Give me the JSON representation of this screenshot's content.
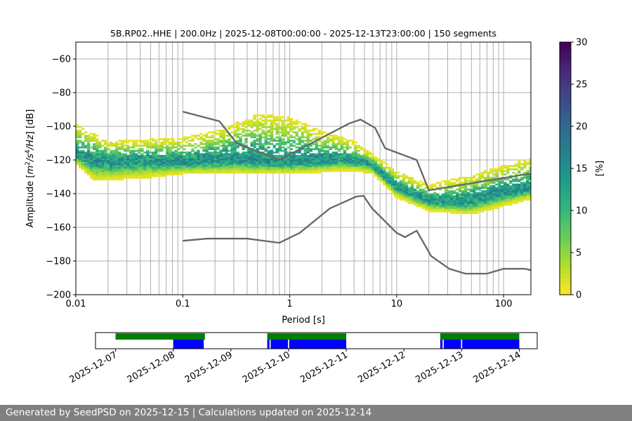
{
  "chart_data": [
    {
      "type": "heatmap",
      "title": "5B.RP02..HHE | 200.0Hz | 2025-12-08T00:00:00 - 2025-12-13T23:00:00 | 150 segments",
      "xlabel": "Period [s]",
      "ylabel": "Amplitude [m²/s⁴/Hz] [dB]",
      "xscale": "log",
      "xlim": [
        0.01,
        180
      ],
      "ylim": [
        -200,
        -50
      ],
      "xticks": [
        {
          "v": 0.01,
          "label": "0.01"
        },
        {
          "v": 0.1,
          "label": "0.1"
        },
        {
          "v": 1,
          "label": "1"
        },
        {
          "v": 10,
          "label": "10"
        },
        {
          "v": 100,
          "label": "100"
        }
      ],
      "yticks": [
        -60,
        -80,
        -100,
        -120,
        -140,
        -160,
        -180,
        -200
      ],
      "grid": true,
      "colorbar": {
        "label": "[%]",
        "range": [
          0,
          30
        ],
        "ticks": [
          0,
          5,
          10,
          15,
          20,
          25,
          30
        ],
        "colormap": "viridis_r"
      },
      "psd_mode": [
        [
          0.01,
          -118
        ],
        [
          0.02,
          -122
        ],
        [
          0.05,
          -121
        ],
        [
          0.1,
          -122
        ],
        [
          0.3,
          -120
        ],
        [
          1,
          -122
        ],
        [
          3,
          -120
        ],
        [
          5,
          -122
        ],
        [
          6,
          -124
        ],
        [
          10,
          -137
        ],
        [
          20,
          -145
        ],
        [
          40,
          -146
        ],
        [
          100,
          -140
        ],
        [
          180,
          -137
        ]
      ],
      "psd_upper": [
        [
          0.01,
          -100
        ],
        [
          0.02,
          -110
        ],
        [
          0.1,
          -108
        ],
        [
          0.2,
          -104
        ],
        [
          0.5,
          -94
        ],
        [
          1,
          -96
        ],
        [
          2,
          -104
        ],
        [
          4,
          -110
        ],
        [
          6,
          -118
        ],
        [
          10,
          -128
        ],
        [
          20,
          -136
        ],
        [
          50,
          -130
        ],
        [
          180,
          -120
        ]
      ],
      "psd_lower": [
        [
          0.01,
          -122
        ],
        [
          0.015,
          -132
        ],
        [
          0.05,
          -130
        ],
        [
          0.1,
          -128
        ],
        [
          1,
          -128
        ],
        [
          4,
          -126
        ],
        [
          6,
          -128
        ],
        [
          10,
          -142
        ],
        [
          20,
          -150
        ],
        [
          50,
          -152
        ],
        [
          180,
          -143
        ]
      ],
      "series": [
        {
          "id": "nhnm",
          "points": [
            [
              0.1,
              -91.3
            ],
            [
              0.22,
              -97
            ],
            [
              0.32,
              -110
            ],
            [
              0.8,
              -120
            ],
            [
              3.6,
              -98.3
            ],
            [
              4.6,
              -96
            ],
            [
              6.3,
              -101
            ],
            [
              7.8,
              -113
            ],
            [
              15.4,
              -120
            ],
            [
              20,
              -138
            ],
            [
              180,
              -128
            ]
          ],
          "color": "#666666"
        },
        {
          "id": "nlnm",
          "points": [
            [
              0.1,
              -168
            ],
            [
              0.17,
              -166.7
            ],
            [
              0.4,
              -166.7
            ],
            [
              0.8,
              -169.2
            ],
            [
              1.24,
              -163.3
            ],
            [
              2.37,
              -148.8
            ],
            [
              4.2,
              -141.7
            ],
            [
              4.9,
              -141.3
            ],
            [
              5.9,
              -148.8
            ],
            [
              10,
              -163.3
            ],
            [
              12,
              -165.8
            ],
            [
              15.4,
              -162
            ],
            [
              21,
              -177
            ],
            [
              31,
              -184.6
            ],
            [
              44,
              -187.5
            ],
            [
              70,
              -187.5
            ],
            [
              100,
              -184.6
            ],
            [
              158,
              -184.6
            ],
            [
              180,
              -185.4
            ]
          ],
          "color": "#666666"
        }
      ]
    },
    {
      "type": "timeline",
      "xticks": [
        "2025-12-07",
        "2025-12-08",
        "2025-12-09",
        "2025-12-10",
        "2025-12-11",
        "2025-12-12",
        "2025-12-13",
        "2025-12-14"
      ],
      "available": [
        [
          7.0,
          8.55
        ],
        [
          9.63,
          11.0
        ],
        [
          12.63,
          14.0
        ]
      ],
      "used": [
        [
          8.0,
          8.53
        ],
        [
          9.63,
          9.67
        ],
        [
          9.69,
          9.99
        ],
        [
          10.01,
          11.0
        ],
        [
          12.63,
          12.67
        ],
        [
          12.69,
          12.99
        ],
        [
          13.01,
          14.0
        ]
      ],
      "available_color": "#008000",
      "used_color": "#0000ff"
    }
  ],
  "footer": "Generated by SeedPSD on 2025-12-15 | Calculations updated on 2025-12-14"
}
